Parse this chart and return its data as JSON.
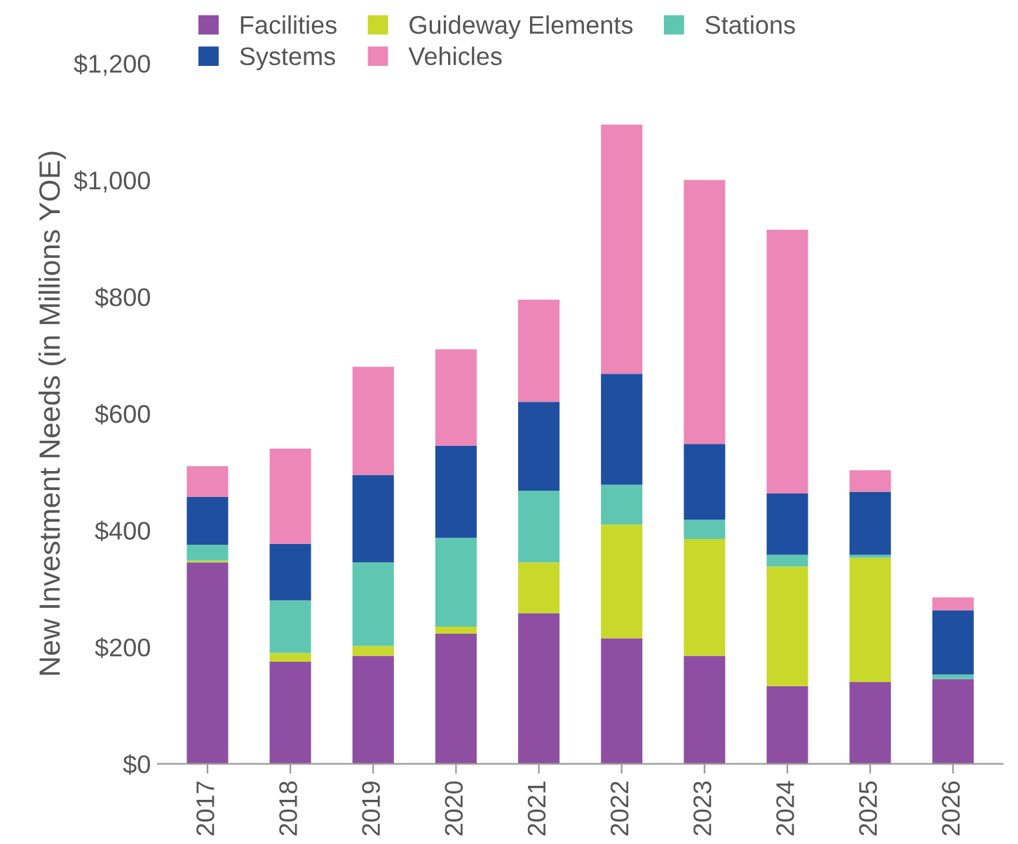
{
  "chart_data": {
    "type": "bar",
    "stacked": true,
    "ylabel": "New Investment Needs (in Millions YOE)",
    "categories": [
      "2017",
      "2018",
      "2019",
      "2020",
      "2021",
      "2022",
      "2023",
      "2024",
      "2025",
      "2026"
    ],
    "series": [
      {
        "name": "Facilities",
        "color": "#8e4fa3",
        "values": [
          345,
          175,
          185,
          223,
          258,
          215,
          185,
          133,
          140,
          145
        ]
      },
      {
        "name": "Guideway Elements",
        "color": "#c9d92b",
        "values": [
          3,
          15,
          17,
          12,
          87,
          195,
          200,
          205,
          213,
          0
        ]
      },
      {
        "name": "Stations",
        "color": "#5fc7b1",
        "values": [
          27,
          90,
          143,
          152,
          123,
          68,
          33,
          20,
          5,
          8
        ]
      },
      {
        "name": "Systems",
        "color": "#1f4fa0",
        "values": [
          82,
          97,
          150,
          158,
          152,
          190,
          130,
          105,
          108,
          110
        ]
      },
      {
        "name": "Vehicles",
        "color": "#ec87b7",
        "values": [
          53,
          163,
          185,
          165,
          175,
          427,
          452,
          452,
          37,
          22
        ]
      }
    ],
    "ylim": [
      0,
      1200
    ],
    "yticks": [
      {
        "value": 0,
        "label": "$0"
      },
      {
        "value": 200,
        "label": "$200"
      },
      {
        "value": 400,
        "label": "$400"
      },
      {
        "value": 600,
        "label": "$600"
      },
      {
        "value": 800,
        "label": "$800"
      },
      {
        "value": 1000,
        "label": "$1,000"
      },
      {
        "value": 1200,
        "label": "$1,200"
      }
    ],
    "grid": false,
    "legend": "top left"
  }
}
